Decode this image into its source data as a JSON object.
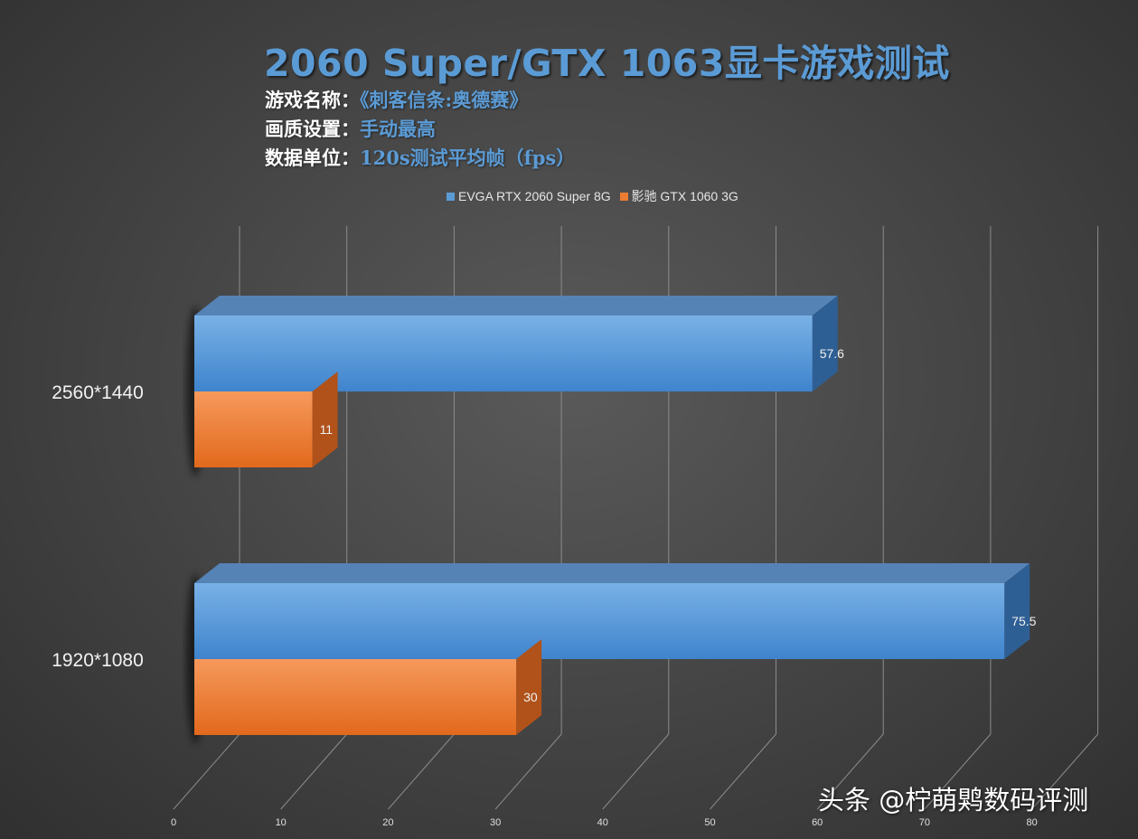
{
  "title": "2060 Super/GTX 1063显卡游戏测试",
  "info": [
    {
      "label": "游戏名称：",
      "value": "《刺客信条:奥德赛》"
    },
    {
      "label": "画质设置：",
      "value": "手动最高"
    },
    {
      "label": "数据单位：",
      "value": "120s测试平均帧（fps）"
    }
  ],
  "watermark": "头条 @柠萌䴗数码评测",
  "chart_data": {
    "type": "bar",
    "orientation": "horizontal",
    "style": "3d",
    "categories": [
      "2560*1440",
      "1920*1080"
    ],
    "series": [
      {
        "name": "EVGA RTX 2060 Super 8G",
        "values": [
          57.6,
          75.5
        ],
        "color": "#5b9bd5"
      },
      {
        "name": "影驰 GTX 1060 3G",
        "values": [
          11,
          30
        ],
        "color": "#ed7d31"
      }
    ],
    "xlim": [
      0,
      80
    ],
    "xticks": [
      "0",
      "10",
      "20",
      "30",
      "40",
      "50",
      "60",
      "70",
      "80"
    ],
    "grid": true,
    "legend_position": "top"
  }
}
